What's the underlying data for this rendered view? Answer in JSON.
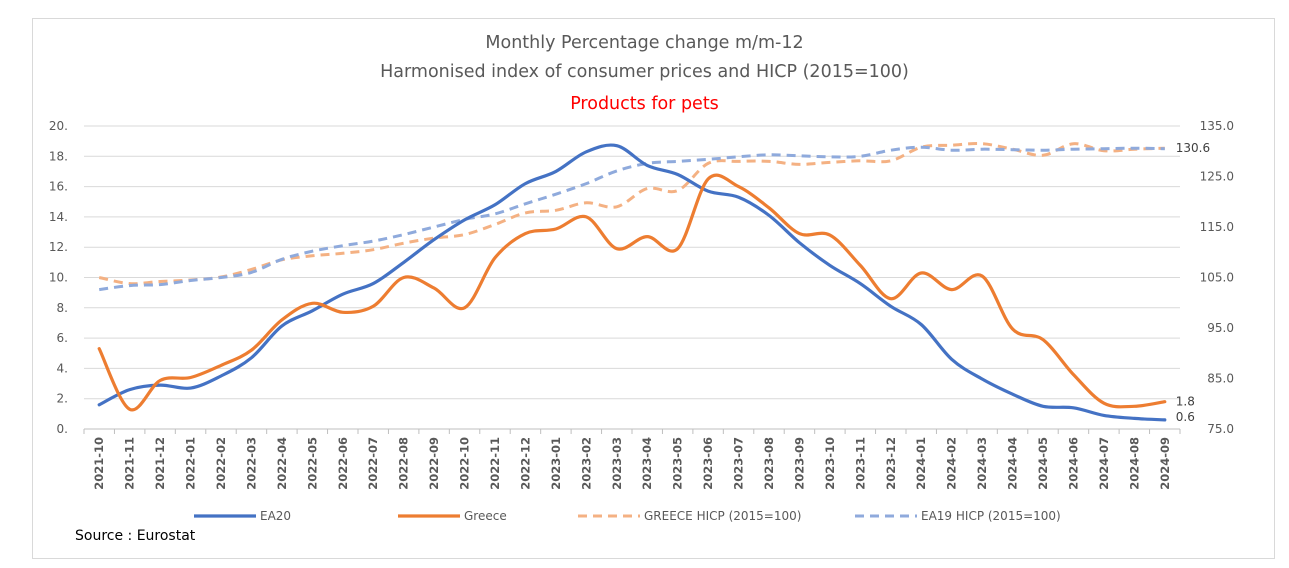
{
  "title": {
    "line1": "Monthly Percentage change m/m-12",
    "line2": "Harmonised index of consumer prices and  HICP (2015=100)",
    "line3": "Products for pets"
  },
  "source": "Source : Eurostat",
  "colors": {
    "ea20": "#4472c4",
    "greece": "#ed7d31",
    "greece_hicp": "#f4b183",
    "ea19_hicp": "#8faadc",
    "title_accent": "#ff0000"
  },
  "chart_data": {
    "type": "line",
    "categories": [
      "2021-10",
      "2021-11",
      "2021-12",
      "2022-01",
      "2022-02",
      "2022-03",
      "2022-04",
      "2022-05",
      "2022-06",
      "2022-07",
      "2022-08",
      "2022-09",
      "2022-10",
      "2022-11",
      "2022-12",
      "2023-01",
      "2023-02",
      "2023-03",
      "2023-04",
      "2023-05",
      "2023-06",
      "2023-07",
      "2023-08",
      "2023-09",
      "2023-10",
      "2023-11",
      "2023-12",
      "2024-01",
      "2024-02",
      "2024-03",
      "2024-04",
      "2024-05",
      "2024-06",
      "2024-07",
      "2024-08",
      "2024-09"
    ],
    "left_axis": {
      "min": 0,
      "max": 20,
      "ticks": [
        "0.",
        "2.",
        "4.",
        "6.",
        "8.",
        "10.",
        "12.",
        "14.",
        "16.",
        "18.",
        "20."
      ]
    },
    "right_axis": {
      "min": 75,
      "max": 135,
      "ticks": [
        "75.0",
        "85.0",
        "95.0",
        "105.0",
        "115.0",
        "125.0",
        "135.0"
      ]
    },
    "series": [
      {
        "name": "EA20",
        "axis": "left",
        "style": "solid",
        "values": [
          1.6,
          2.6,
          2.9,
          2.7,
          3.5,
          4.7,
          6.8,
          7.8,
          8.9,
          9.6,
          11.0,
          12.5,
          13.8,
          14.8,
          16.2,
          17.0,
          18.3,
          18.7,
          17.4,
          16.8,
          15.7,
          15.3,
          14.1,
          12.3,
          10.8,
          9.6,
          8.1,
          6.9,
          4.6,
          3.3,
          2.3,
          1.5,
          1.4,
          0.9,
          0.7,
          0.6
        ]
      },
      {
        "name": "Greece",
        "axis": "left",
        "style": "solid",
        "values": [
          5.3,
          1.3,
          3.2,
          3.4,
          4.2,
          5.2,
          7.2,
          8.3,
          7.7,
          8.1,
          10.0,
          9.3,
          8.0,
          11.3,
          12.9,
          13.2,
          14.0,
          11.9,
          12.7,
          11.9,
          16.5,
          16.0,
          14.6,
          12.9,
          12.8,
          10.8,
          8.6,
          10.3,
          9.2,
          10.1,
          6.6,
          5.9,
          3.6,
          1.7,
          1.5,
          1.8
        ]
      },
      {
        "name": "GREECE HICP (2015=100)",
        "axis": "right",
        "style": "dashed",
        "values": [
          105.0,
          103.8,
          104.2,
          104.5,
          105.1,
          106.6,
          108.5,
          109.3,
          109.8,
          110.5,
          111.8,
          112.8,
          113.5,
          115.5,
          117.8,
          118.3,
          119.8,
          119.0,
          122.6,
          122.2,
          127.6,
          128.0,
          128.0,
          127.4,
          127.8,
          128.1,
          128.1,
          130.8,
          131.2,
          131.5,
          130.4,
          129.2,
          131.5,
          130.1,
          130.4,
          130.6
        ]
      },
      {
        "name": "EA19 HICP (2015=100)",
        "axis": "right",
        "style": "dashed",
        "values": [
          102.6,
          103.4,
          103.6,
          104.4,
          105.0,
          106.0,
          108.6,
          110.2,
          111.3,
          112.2,
          113.5,
          115.0,
          116.5,
          117.6,
          119.6,
          121.5,
          123.6,
          126.1,
          127.6,
          128.0,
          128.4,
          128.9,
          129.3,
          129.1,
          128.9,
          129.0,
          130.2,
          130.8,
          130.2,
          130.4,
          130.3,
          130.2,
          130.4,
          130.5,
          130.6,
          130.5
        ]
      }
    ],
    "end_labels": {
      "greece": "1.8",
      "ea20": "0.6",
      "hicp": "130.6"
    },
    "legend": "bottom",
    "grid": "horizontal"
  }
}
